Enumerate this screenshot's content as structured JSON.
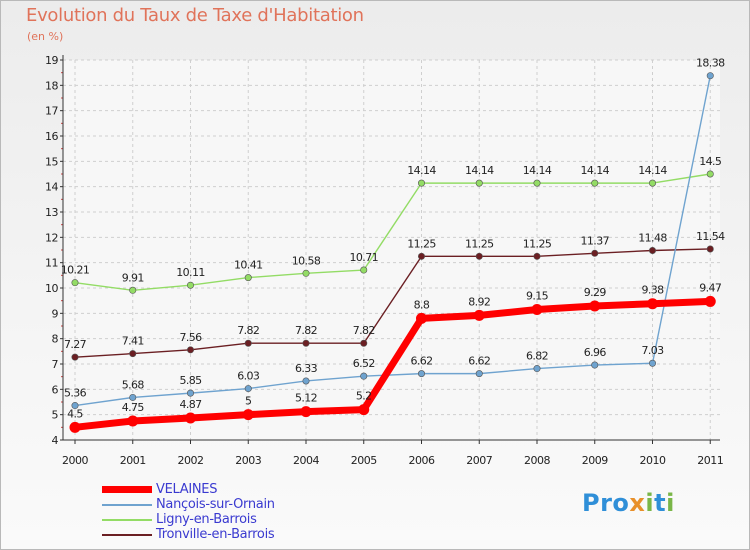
{
  "title": "Evolution du Taux de Taxe d'Habitation",
  "unit": "(en %)",
  "brand": "Proxiti",
  "chart_data": {
    "type": "line",
    "title": "Evolution du Taux de Taxe d'Habitation",
    "ylabel": "(en %)",
    "xlabel": "",
    "x": [
      "2000",
      "2001",
      "2002",
      "2003",
      "2004",
      "2005",
      "2006",
      "2007",
      "2008",
      "2009",
      "2010",
      "2011"
    ],
    "ylim": [
      4,
      19
    ],
    "yticks": [
      "4",
      "5",
      "6",
      "7",
      "8",
      "9",
      "10",
      "11",
      "12",
      "13",
      "14",
      "15",
      "16",
      "17",
      "18",
      "19"
    ],
    "grid": true,
    "legend_position": "bottom-left",
    "series": [
      {
        "name": "Tronville-en-Barrois",
        "color": "#6b1f23",
        "width": 1.4,
        "values": [
          7.27,
          7.41,
          7.56,
          7.82,
          7.82,
          7.82,
          11.25,
          11.25,
          11.25,
          11.37,
          11.48,
          11.54
        ],
        "labels": [
          "7.27",
          "7.41",
          "7.56",
          "7.82",
          "7.82",
          "7.82",
          "11.25",
          "11.25",
          "11.25",
          "11.37",
          "11.48",
          "11.54"
        ]
      },
      {
        "name": "Ligny-en-Barrois",
        "color": "#93dc65",
        "width": 1.4,
        "values": [
          10.21,
          9.91,
          10.11,
          10.41,
          10.58,
          10.71,
          14.14,
          14.14,
          14.14,
          14.14,
          14.14,
          14.5
        ],
        "labels": [
          "10.21",
          "9.91",
          "10.11",
          "10.41",
          "10.58",
          "10.71",
          "14.14",
          "14.14",
          "14.14",
          "14.14",
          "14.14",
          "14.5"
        ]
      },
      {
        "name": "Nançois-sur-Ornain",
        "color": "#6fa3cf",
        "width": 1.4,
        "values": [
          5.36,
          5.68,
          5.85,
          6.03,
          6.33,
          6.52,
          6.62,
          6.62,
          6.82,
          6.96,
          7.03,
          18.38
        ],
        "labels": [
          "5.36",
          "5.68",
          "5.85",
          "6.03",
          "6.33",
          "6.52",
          "6.62",
          "6.62",
          "6.82",
          "6.96",
          "7.03",
          "18.38"
        ]
      },
      {
        "name": "VELAINES",
        "color": "#ff0000",
        "width": 7,
        "values": [
          4.5,
          4.75,
          4.87,
          5,
          5.12,
          5.2,
          8.8,
          8.92,
          9.15,
          9.29,
          9.38,
          9.47
        ],
        "labels": [
          "4.5",
          "4.75",
          "4.87",
          "5",
          "5.12",
          "5.2",
          "8.8",
          "8.92",
          "9.15",
          "9.29",
          "9.38",
          "9.47"
        ]
      }
    ],
    "legend": [
      "VELAINES",
      "Nançois-sur-Ornain",
      "Ligny-en-Barrois",
      "Tronville-en-Barrois"
    ]
  }
}
